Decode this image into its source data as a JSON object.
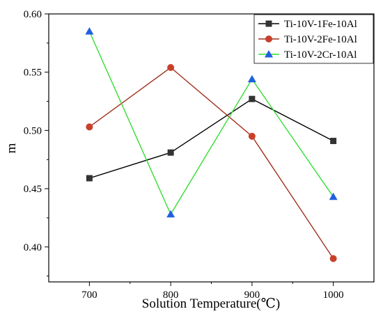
{
  "chart_data": {
    "type": "line",
    "xlabel": "Solution Temperature(℃)",
    "ylabel": "m",
    "x": [
      700,
      800,
      900,
      1000
    ],
    "xlim": [
      650,
      1050
    ],
    "ylim": [
      0.37,
      0.6
    ],
    "xticks": [
      "700",
      "800",
      "900",
      "1000"
    ],
    "yticks": [
      "0.40",
      "0.45",
      "0.50",
      "0.55",
      "0.60"
    ],
    "legend_position": "top-right",
    "grid": false,
    "series": [
      {
        "name": "Ti-10V-1Fe-10Al",
        "values": [
          0.459,
          0.481,
          0.527,
          0.491
        ],
        "line_color": "#000000",
        "marker_color": "#333333",
        "marker": "square"
      },
      {
        "name": "Ti-10V-2Fe-10Al",
        "values": [
          0.503,
          0.554,
          0.495,
          0.39
        ],
        "line_color": "#a0301c",
        "marker_color": "#c8402a",
        "marker": "circle"
      },
      {
        "name": "Ti-10V-2Cr-10Al",
        "values": [
          0.585,
          0.428,
          0.544,
          0.443
        ],
        "line_color": "#33dd33",
        "marker_color": "#2060e0",
        "marker": "triangle"
      }
    ]
  }
}
